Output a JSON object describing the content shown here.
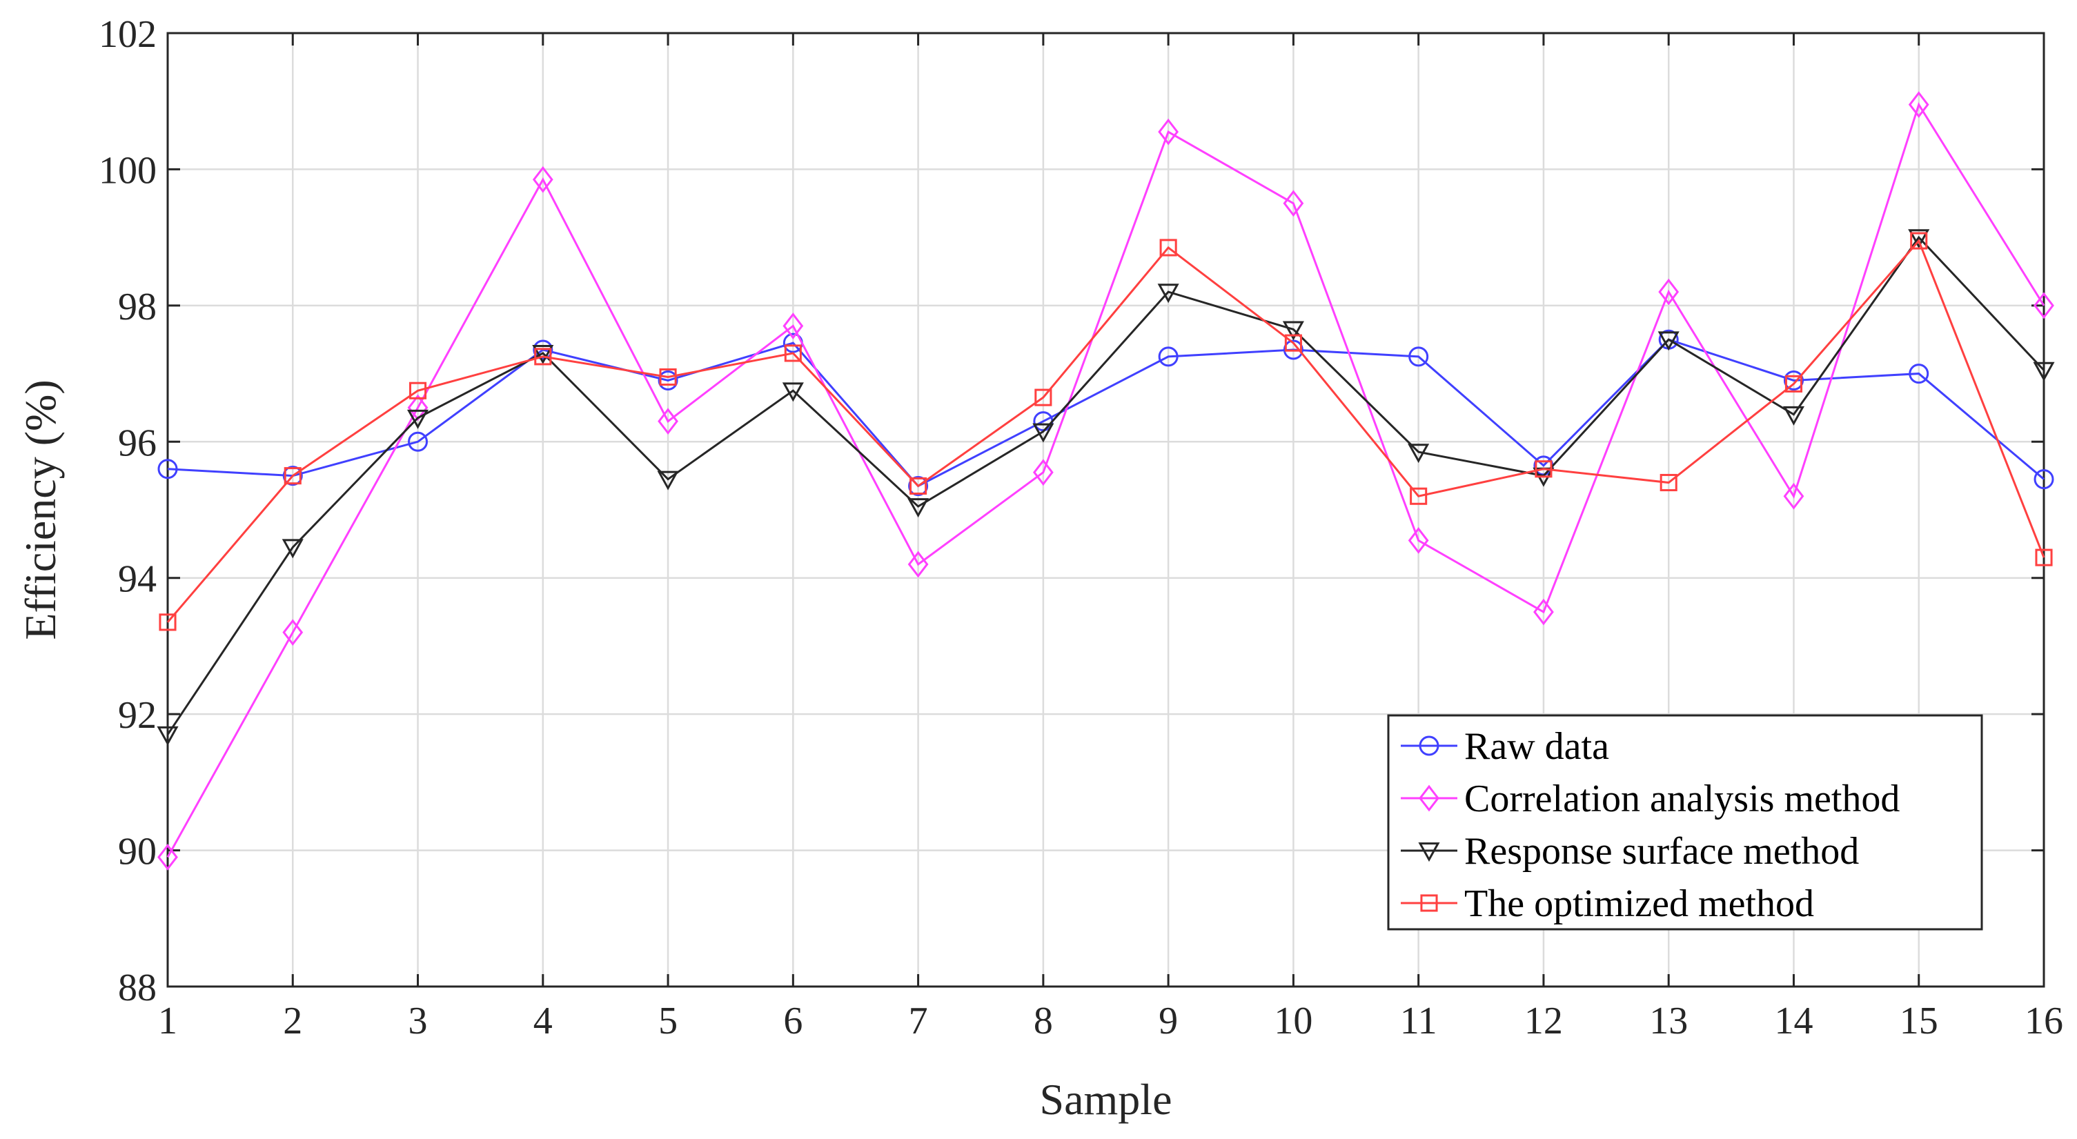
{
  "chart_data": {
    "type": "line",
    "title": "",
    "xlabel": "Sample",
    "ylabel": "Efficiency (%)",
    "xlim": [
      1,
      16
    ],
    "ylim": [
      88,
      102
    ],
    "xticks": [
      1,
      2,
      3,
      4,
      5,
      6,
      7,
      8,
      9,
      10,
      11,
      12,
      13,
      14,
      15,
      16
    ],
    "yticks": [
      88,
      90,
      92,
      94,
      96,
      98,
      100,
      102
    ],
    "grid": true,
    "legend_position": "lower-right",
    "x": [
      1,
      2,
      3,
      4,
      5,
      6,
      7,
      8,
      9,
      10,
      11,
      12,
      13,
      14,
      15,
      16
    ],
    "series": [
      {
        "name": "Raw data",
        "color": "#4040ff",
        "marker": "circle",
        "values": [
          95.6,
          95.5,
          96.0,
          97.35,
          96.9,
          97.45,
          95.35,
          96.3,
          97.25,
          97.35,
          97.25,
          95.65,
          97.5,
          96.9,
          97.0,
          95.45
        ]
      },
      {
        "name": "Correlation analysis method",
        "color": "#ff40ff",
        "marker": "diamond",
        "values": [
          89.9,
          93.2,
          96.5,
          99.85,
          96.3,
          97.7,
          94.2,
          95.55,
          100.55,
          99.5,
          94.55,
          93.5,
          98.2,
          95.2,
          100.95,
          98.0
        ]
      },
      {
        "name": "Response surface method",
        "color": "#262626",
        "marker": "triangle-down",
        "values": [
          91.7,
          94.45,
          96.35,
          97.3,
          95.45,
          96.75,
          95.05,
          96.15,
          98.2,
          97.65,
          95.85,
          95.5,
          97.5,
          96.4,
          99.0,
          97.05
        ]
      },
      {
        "name": "The optimized method",
        "color": "#ff4040",
        "marker": "square",
        "values": [
          93.35,
          95.5,
          96.75,
          97.25,
          96.95,
          97.3,
          95.35,
          96.65,
          98.85,
          97.45,
          95.2,
          95.6,
          95.4,
          96.85,
          98.95,
          94.3
        ]
      }
    ]
  }
}
